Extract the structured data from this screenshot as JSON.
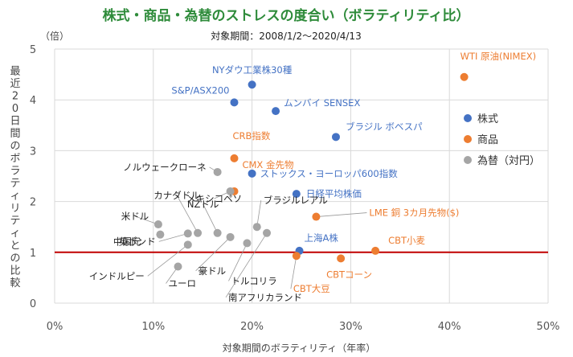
{
  "chart_data": {
    "type": "scatter",
    "title": "株式・商品・為替のストレスの度合い（ボラティリティ比）",
    "subtitle": "対象期間：2008/1/2～2020/4/13",
    "xlabel": "対象期間のボラティリティ（年率）",
    "ylabel": "最近20日間のボラティリティとの比較",
    "yunit": "（倍）",
    "xlim": [
      0,
      50
    ],
    "ylim": [
      0,
      5
    ],
    "x_ticks": [
      "0%",
      "10%",
      "20%",
      "30%",
      "40%",
      "50%"
    ],
    "y_ticks": [
      "0",
      "1",
      "2",
      "3",
      "4",
      "5"
    ],
    "grid": true,
    "reference_line": 1,
    "legend_position": "right",
    "colors": {
      "株式": "#4472c4",
      "商品": "#ed7d31",
      "為替（対円）": "#a5a5a5",
      "reference": "#c00000"
    },
    "series": [
      {
        "name": "株式",
        "points": [
          {
            "label": "NYダウ工業株30種",
            "x": 20.0,
            "y": 4.3
          },
          {
            "label": "S&P/ASX200",
            "x": 18.2,
            "y": 3.95
          },
          {
            "label": "ムンバイ SENSEX",
            "x": 22.4,
            "y": 3.78
          },
          {
            "label": "ブラジル ボベスパ",
            "x": 28.5,
            "y": 3.27
          },
          {
            "label": "ストックス・ヨーロッパ600指数",
            "x": 20.0,
            "y": 2.55
          },
          {
            "label": "日経平均株価",
            "x": 24.5,
            "y": 2.15
          },
          {
            "label": "上海A株",
            "x": 24.8,
            "y": 1.03
          }
        ]
      },
      {
        "name": "商品",
        "points": [
          {
            "label": "WTI 原油(NIMEX)",
            "x": 41.5,
            "y": 4.45
          },
          {
            "label": "CRB指数",
            "x": 18.2,
            "y": 2.85
          },
          {
            "label": "CMX 金先物",
            "x": 18.2,
            "y": 2.2
          },
          {
            "label": "LME 銅 3カ月先物($)",
            "x": 26.5,
            "y": 1.7
          },
          {
            "label": "CBT小麦",
            "x": 32.5,
            "y": 1.03
          },
          {
            "label": "CBTコーン",
            "x": 29.0,
            "y": 0.88
          },
          {
            "label": "CBT大豆",
            "x": 24.5,
            "y": 0.93
          }
        ]
      },
      {
        "name": "為替（対円）",
        "points": [
          {
            "label": "ノルウェークローネ",
            "x": 16.5,
            "y": 2.58
          },
          {
            "label": "メキシコペソ",
            "x": 17.8,
            "y": 2.2
          },
          {
            "label": "米ドル",
            "x": 10.5,
            "y": 1.55
          },
          {
            "label": "中国元",
            "x": 10.7,
            "y": 1.35
          },
          {
            "label": "カナダドル",
            "x": 14.5,
            "y": 1.38
          },
          {
            "label": "NZドル",
            "x": 16.5,
            "y": 1.38
          },
          {
            "label": "ブラジルレアル",
            "x": 20.5,
            "y": 1.5
          },
          {
            "label": "英ポンド",
            "x": 13.5,
            "y": 1.37
          },
          {
            "label": "豪ドル",
            "x": 17.8,
            "y": 1.3
          },
          {
            "label": "トルコリラ",
            "x": 19.5,
            "y": 1.18
          },
          {
            "label": "南アフリカランド",
            "x": 21.5,
            "y": 1.38
          },
          {
            "label": "インドルピー",
            "x": 13.5,
            "y": 1.15
          },
          {
            "label": "ユーロ",
            "x": 12.5,
            "y": 0.72
          }
        ]
      }
    ]
  }
}
